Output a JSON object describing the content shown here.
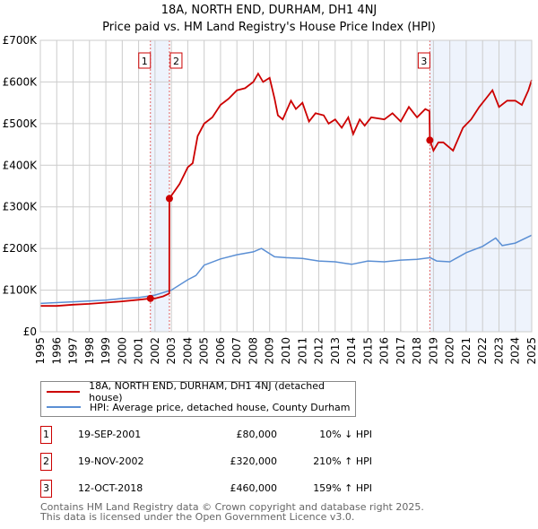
{
  "header": {
    "title": "18A, NORTH END, DURHAM, DH1 4NJ",
    "subtitle": "Price paid vs. HM Land Registry's House Price Index (HPI)"
  },
  "chart_data": {
    "type": "line",
    "title": "18A, NORTH END, DURHAM, DH1 4NJ — Price paid vs. HM Land Registry's House Price Index (HPI)",
    "xlim": [
      1995,
      2025
    ],
    "ylim": [
      0,
      700000
    ],
    "x_ticks": [
      "1995",
      "1996",
      "1997",
      "1998",
      "1999",
      "2000",
      "2001",
      "2002",
      "2003",
      "2004",
      "2005",
      "2006",
      "2007",
      "2008",
      "2009",
      "2010",
      "2011",
      "2012",
      "2013",
      "2014",
      "2015",
      "2016",
      "2017",
      "2018",
      "2019",
      "2020",
      "2021",
      "2022",
      "2023",
      "2024",
      "2025"
    ],
    "y_ticks": [
      {
        "v": 0,
        "label": "£0"
      },
      {
        "v": 100000,
        "label": "£100K"
      },
      {
        "v": 200000,
        "label": "£200K"
      },
      {
        "v": 300000,
        "label": "£300K"
      },
      {
        "v": 400000,
        "label": "£400K"
      },
      {
        "v": 500000,
        "label": "£500K"
      },
      {
        "v": 600000,
        "label": "£600K"
      },
      {
        "v": 700000,
        "label": "£700K"
      }
    ],
    "grid": true,
    "colors": {
      "property": "#cc0000",
      "hpi": "#5b8fd4",
      "shade": "#eef3fc",
      "vline": "#e06060"
    },
    "shaded_ranges": [
      [
        2001.72,
        2002.88
      ],
      [
        2018.78,
        2025
      ]
    ],
    "series": [
      {
        "name": "18A, NORTH END, DURHAM, DH1 4NJ (detached house)",
        "key": "property",
        "x": [
          1995,
          1996,
          1997,
          1998,
          1999,
          2000,
          2001,
          2001.72,
          2002,
          2002.5,
          2002.87,
          2002.88,
          2003.5,
          2004,
          2004.3,
          2004.6,
          2005,
          2005.5,
          2006,
          2006.5,
          2007,
          2007.5,
          2008,
          2008.3,
          2008.6,
          2009,
          2009.3,
          2009.5,
          2009.8,
          2010.3,
          2010.6,
          2011,
          2011.4,
          2011.8,
          2012.3,
          2012.6,
          2013,
          2013.4,
          2013.8,
          2014.1,
          2014.5,
          2014.8,
          2015.2,
          2016,
          2016.5,
          2017,
          2017.5,
          2018,
          2018.5,
          2018.76,
          2018.78,
          2019,
          2019.3,
          2019.6,
          2020.2,
          2020.8,
          2021.3,
          2021.8,
          2022.2,
          2022.6,
          2023,
          2023.5,
          2024,
          2024.4,
          2024.8,
          2025
        ],
        "y": [
          62000,
          62000,
          65000,
          67000,
          70000,
          73000,
          77000,
          80000,
          80000,
          85000,
          92000,
          320000,
          355000,
          395000,
          405000,
          470000,
          500000,
          515000,
          545000,
          560000,
          580000,
          585000,
          600000,
          620000,
          600000,
          610000,
          560000,
          520000,
          510000,
          555000,
          535000,
          550000,
          505000,
          525000,
          520000,
          500000,
          510000,
          490000,
          515000,
          475000,
          510000,
          495000,
          515000,
          510000,
          525000,
          505000,
          540000,
          515000,
          535000,
          530000,
          460000,
          435000,
          455000,
          455000,
          435000,
          490000,
          510000,
          540000,
          560000,
          580000,
          540000,
          555000,
          555000,
          545000,
          580000,
          605000
        ]
      },
      {
        "name": "HPI: Average price, detached house, County Durham",
        "key": "hpi",
        "x": [
          1995,
          1997,
          1999,
          2000,
          2001,
          2002,
          2003,
          2004,
          2004.5,
          2005,
          2006,
          2007,
          2008,
          2008.5,
          2009.3,
          2010,
          2011,
          2012,
          2013,
          2014,
          2015,
          2016,
          2017,
          2018,
          2018.8,
          2019.2,
          2020,
          2021,
          2022,
          2022.8,
          2023.2,
          2024,
          2025
        ],
        "y": [
          68000,
          72000,
          76000,
          80000,
          82000,
          88000,
          100000,
          125000,
          135000,
          160000,
          175000,
          185000,
          192000,
          200000,
          180000,
          178000,
          176000,
          170000,
          168000,
          162000,
          170000,
          168000,
          172000,
          174000,
          178000,
          170000,
          168000,
          190000,
          205000,
          225000,
          207000,
          213000,
          232000
        ]
      }
    ],
    "sales": [
      {
        "num": "1",
        "x": 2001.72,
        "y": 80000,
        "date": "19-SEP-2001",
        "price": "£80,000",
        "hpi": "10% ↓ HPI"
      },
      {
        "num": "2",
        "x": 2002.88,
        "y": 320000,
        "date": "19-NOV-2002",
        "price": "£320,000",
        "hpi": "210% ↑ HPI"
      },
      {
        "num": "3",
        "x": 2018.78,
        "y": 460000,
        "date": "12-OCT-2018",
        "price": "£460,000",
        "hpi": "159% ↑ HPI"
      }
    ]
  },
  "legend": {
    "property": "18A, NORTH END, DURHAM, DH1 4NJ (detached house)",
    "hpi": "HPI: Average price, detached house, County Durham"
  },
  "footer": {
    "line1": "Contains HM Land Registry data © Crown copyright and database right 2025.",
    "line2": "This data is licensed under the Open Government Licence v3.0."
  }
}
